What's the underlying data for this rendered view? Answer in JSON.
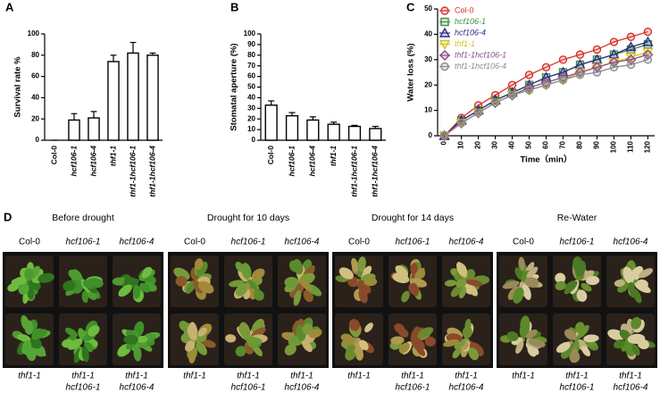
{
  "chart_data": [
    {
      "type": "bar",
      "panel": "A",
      "ylabel": "Survival rate %",
      "categories": [
        "Col-0",
        "hcf106-1",
        "hcf106-4",
        "thf1-1",
        "thf1-1hcf106-1",
        "thf1-1hcf106-4"
      ],
      "values": [
        0,
        19,
        21,
        74,
        82,
        80
      ],
      "errors": [
        0,
        6,
        6,
        6,
        10,
        2
      ],
      "color": "#ffffff",
      "ylim": [
        0,
        100
      ],
      "yticks": [
        0,
        20,
        40,
        60,
        80,
        100
      ]
    },
    {
      "type": "bar",
      "panel": "B",
      "ylabel": "Stomatal aperture (%)",
      "categories": [
        "Col-0",
        "hcf106-1",
        "hcf106-4",
        "thf1-1",
        "thf1-1hcf106-1",
        "thf1-1hcf106-4"
      ],
      "values": [
        33,
        23,
        19,
        15,
        13,
        11
      ],
      "errors": [
        4,
        3,
        3,
        2,
        1,
        2
      ],
      "color": "#ffffff",
      "ylim": [
        0,
        100
      ],
      "yticks": [
        0,
        10,
        20,
        30,
        40,
        50,
        60,
        70,
        80,
        90,
        100
      ]
    },
    {
      "type": "line",
      "panel": "C",
      "xlabel": "Time（min）",
      "ylabel": "Water loss (%)",
      "x": [
        0,
        10,
        20,
        30,
        40,
        50,
        60,
        70,
        80,
        90,
        100,
        110,
        120
      ],
      "xlim": [
        -4,
        124
      ],
      "xticks": [
        0,
        10,
        20,
        30,
        40,
        50,
        60,
        70,
        80,
        90,
        100,
        110,
        120
      ],
      "ylim": [
        0,
        50
      ],
      "yticks": [
        0,
        10,
        20,
        30,
        40,
        50
      ],
      "legend": "upper left",
      "series": [
        {
          "name": "Col-0",
          "color": "#d9312b",
          "marker": "circle",
          "values": [
            0,
            7,
            12,
            16,
            20,
            24,
            27,
            30,
            32,
            34,
            37,
            39,
            41
          ]
        },
        {
          "name": "hcf106-1",
          "color": "#3f8f3f",
          "marker": "square",
          "values": [
            0,
            6,
            10,
            14,
            17,
            20,
            23,
            25,
            28,
            30,
            32,
            34,
            36
          ]
        },
        {
          "name": "hcf106-4",
          "color": "#2b2f86",
          "marker": "triangle-up",
          "values": [
            0,
            6,
            10,
            14,
            17,
            20,
            23,
            25,
            28,
            30,
            32,
            35,
            37
          ]
        },
        {
          "name": "thf1-1",
          "color": "#d8c21a",
          "marker": "triangle-down",
          "values": [
            0,
            5,
            9,
            13,
            16,
            18,
            20,
            22,
            25,
            27,
            29,
            31,
            33
          ]
        },
        {
          "name": "thf1-1hcf106-1",
          "color": "#8a4d8a",
          "marker": "diamond",
          "values": [
            0,
            5,
            9,
            13,
            16,
            19,
            21,
            23,
            25,
            27,
            29,
            30,
            32
          ]
        },
        {
          "name": "thf1-1hcf106-4",
          "color": "#8c8c8c",
          "marker": "circle",
          "values": [
            0,
            5,
            9,
            13,
            16,
            18,
            20,
            22,
            24,
            25,
            27,
            28,
            30
          ]
        }
      ]
    }
  ],
  "panel_d": {
    "label": "D",
    "groups": [
      {
        "title": "Before drought",
        "top": [
          "Col-0",
          "hcf106-1",
          "hcf106-4"
        ],
        "bottom": [
          [
            "thf1-1"
          ],
          [
            "thf1-1",
            "hcf106-1"
          ],
          [
            "thf1-1",
            "hcf106-4"
          ]
        ]
      },
      {
        "title": "Drought for 10 days",
        "top": [
          "Col-0",
          "hcf106-1",
          "hcf106-4"
        ],
        "bottom": [
          [
            "thf1-1"
          ],
          [
            "thf1-1",
            "hcf106-1"
          ],
          [
            "thf1-1",
            "hcf106-4"
          ]
        ]
      },
      {
        "title": "Drought for 14 days",
        "top": [
          "Col-0",
          "hcf106-1",
          "hcf106-4"
        ],
        "bottom": [
          [
            "thf1-1"
          ],
          [
            "thf1-1",
            "hcf106-1"
          ],
          [
            "thf1-1",
            "hcf106-4"
          ]
        ]
      },
      {
        "title": "Re-Water",
        "top": [
          "Col-0",
          "hcf106-1",
          "hcf106-4"
        ],
        "bottom": [
          [
            "thf1-1"
          ],
          [
            "thf1-1",
            "hcf106-1"
          ],
          [
            "thf1-1",
            "hcf106-4"
          ]
        ]
      }
    ]
  }
}
